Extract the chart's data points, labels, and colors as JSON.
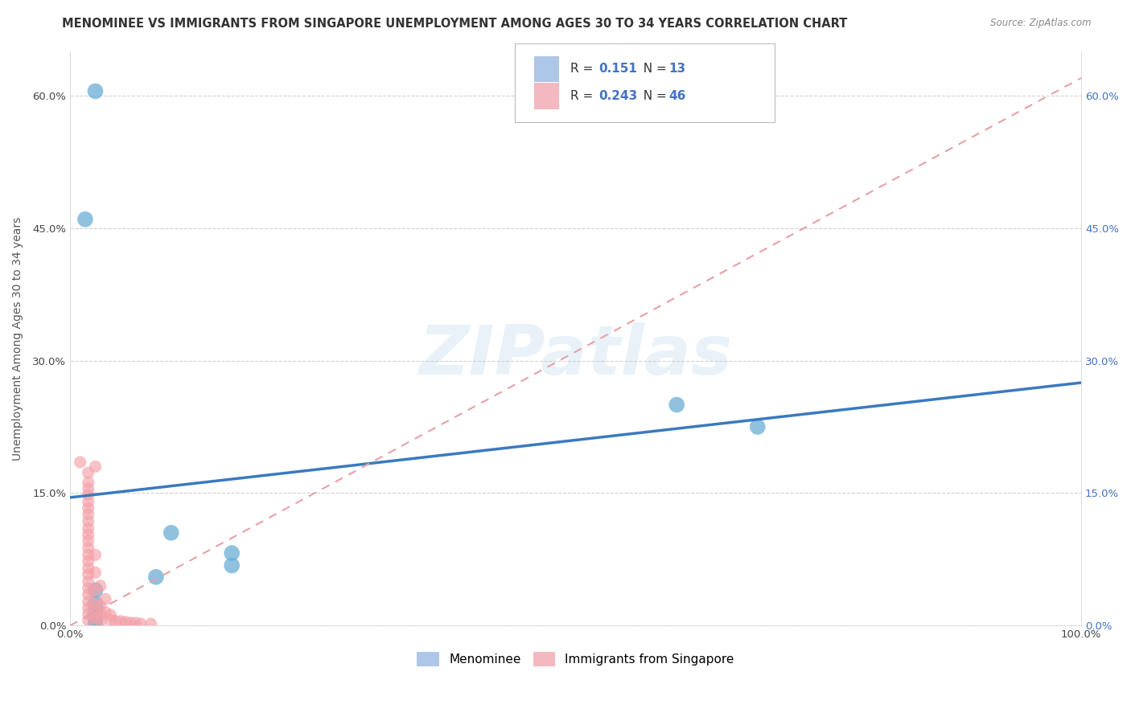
{
  "title": "MENOMINEE VS IMMIGRANTS FROM SINGAPORE UNEMPLOYMENT AMONG AGES 30 TO 34 YEARS CORRELATION CHART",
  "source": "Source: ZipAtlas.com",
  "ylabel": "Unemployment Among Ages 30 to 34 years",
  "xlim": [
    0,
    1.0
  ],
  "ylim": [
    0,
    0.65
  ],
  "yticks": [
    0.0,
    0.15,
    0.3,
    0.45,
    0.6
  ],
  "ytick_labels": [
    "0.0%",
    "15.0%",
    "30.0%",
    "45.0%",
    "60.0%"
  ],
  "xticks": [
    0.0,
    0.1,
    0.2,
    0.3,
    0.4,
    0.5,
    0.6,
    0.7,
    0.8,
    0.9,
    1.0
  ],
  "legend_color1": "#aec6e8",
  "legend_color2": "#f4b8c1",
  "watermark": "ZIPatlas",
  "menominee_color": "#6baed6",
  "singapore_color": "#f4a0a8",
  "trend_color_menominee": "#3a7abf",
  "trend_color_singapore": "#e8a0a8",
  "menominee_points": [
    [
      0.025,
      0.605
    ],
    [
      0.015,
      0.46
    ],
    [
      0.6,
      0.25
    ],
    [
      0.68,
      0.225
    ],
    [
      0.1,
      0.105
    ],
    [
      0.16,
      0.082
    ],
    [
      0.16,
      0.068
    ],
    [
      0.085,
      0.055
    ],
    [
      0.025,
      0.04
    ],
    [
      0.025,
      0.025
    ],
    [
      0.025,
      0.015
    ],
    [
      0.025,
      0.008
    ],
    [
      0.025,
      0.002
    ]
  ],
  "singapore_points": [
    [
      0.01,
      0.185
    ],
    [
      0.018,
      0.173
    ],
    [
      0.018,
      0.162
    ],
    [
      0.018,
      0.155
    ],
    [
      0.018,
      0.148
    ],
    [
      0.018,
      0.14
    ],
    [
      0.018,
      0.133
    ],
    [
      0.018,
      0.126
    ],
    [
      0.018,
      0.118
    ],
    [
      0.018,
      0.11
    ],
    [
      0.018,
      0.103
    ],
    [
      0.018,
      0.096
    ],
    [
      0.018,
      0.088
    ],
    [
      0.018,
      0.08
    ],
    [
      0.018,
      0.073
    ],
    [
      0.018,
      0.065
    ],
    [
      0.018,
      0.058
    ],
    [
      0.018,
      0.05
    ],
    [
      0.018,
      0.042
    ],
    [
      0.018,
      0.035
    ],
    [
      0.018,
      0.027
    ],
    [
      0.018,
      0.02
    ],
    [
      0.018,
      0.013
    ],
    [
      0.018,
      0.006
    ],
    [
      0.025,
      0.18
    ],
    [
      0.025,
      0.08
    ],
    [
      0.025,
      0.06
    ],
    [
      0.025,
      0.04
    ],
    [
      0.025,
      0.025
    ],
    [
      0.025,
      0.015
    ],
    [
      0.025,
      0.008
    ],
    [
      0.03,
      0.045
    ],
    [
      0.03,
      0.022
    ],
    [
      0.03,
      0.012
    ],
    [
      0.03,
      0.005
    ],
    [
      0.035,
      0.03
    ],
    [
      0.035,
      0.015
    ],
    [
      0.04,
      0.012
    ],
    [
      0.04,
      0.006
    ],
    [
      0.045,
      0.005
    ],
    [
      0.05,
      0.005
    ],
    [
      0.055,
      0.004
    ],
    [
      0.06,
      0.003
    ],
    [
      0.065,
      0.003
    ],
    [
      0.07,
      0.002
    ],
    [
      0.08,
      0.002
    ]
  ],
  "menominee_trend_x": [
    0.0,
    1.0
  ],
  "menominee_trend_y": [
    0.145,
    0.275
  ],
  "singapore_trend_x": [
    0.0,
    1.0
  ],
  "singapore_trend_y": [
    0.0,
    0.62
  ],
  "bg_color": "#ffffff",
  "grid_color": "#cccccc",
  "title_fontsize": 10.5,
  "axis_fontsize": 10,
  "tick_fontsize": 9.5
}
